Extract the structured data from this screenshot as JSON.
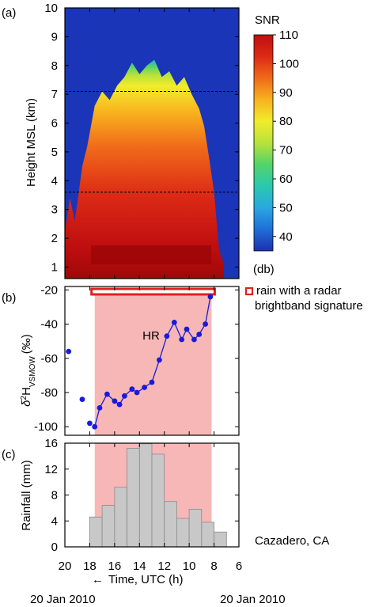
{
  "chart_data": [
    {
      "panel_label": "(a)",
      "type": "heatmap",
      "ylabel": "Height MSL (km)",
      "ylim": [
        0.6,
        10
      ],
      "yticks": [
        "1",
        "2",
        "3",
        "4",
        "5",
        "6",
        "7",
        "8",
        "9",
        "10"
      ],
      "colorbar": {
        "title": "SNR",
        "unit": "(db)",
        "range": [
          35,
          110
        ],
        "ticks": [
          "110",
          "100",
          "90",
          "80",
          "70",
          "60",
          "50",
          "40"
        ],
        "colors": [
          "#1f2fb0",
          "#1f6fd8",
          "#2aa7e0",
          "#29c9b0",
          "#54d36a",
          "#b8e23a",
          "#f2ec2c",
          "#f8b21e",
          "#f06a1a",
          "#dc2a16",
          "#c00e10"
        ]
      },
      "reference_lines_km": [
        7.1,
        3.6
      ],
      "approx_echo_top_km": [
        [
          20.0,
          2.2
        ],
        [
          19.6,
          3.4
        ],
        [
          19.2,
          2.6
        ],
        [
          18.6,
          4.5
        ],
        [
          18.2,
          5.2
        ],
        [
          17.6,
          6.6
        ],
        [
          17.0,
          7.1
        ],
        [
          16.4,
          6.8
        ],
        [
          15.8,
          7.3
        ],
        [
          15.2,
          7.6
        ],
        [
          14.6,
          8.1
        ],
        [
          14.0,
          7.7
        ],
        [
          13.4,
          8.0
        ],
        [
          12.8,
          8.2
        ],
        [
          12.2,
          7.6
        ],
        [
          11.6,
          7.8
        ],
        [
          11.0,
          7.3
        ],
        [
          10.4,
          7.6
        ],
        [
          9.8,
          7.0
        ],
        [
          9.2,
          6.5
        ],
        [
          8.8,
          5.9
        ],
        [
          8.4,
          4.8
        ],
        [
          8.0,
          3.6
        ],
        [
          7.6,
          1.6
        ],
        [
          7.2,
          1.1
        ]
      ]
    },
    {
      "panel_label": "(b)",
      "type": "scatter",
      "ylabel": "δ²H",
      "ylabel_subscript": "VSMOW",
      "ylabel_unit": "(‰)",
      "ylim": [
        -105,
        -18
      ],
      "yticks": [
        "-20",
        "-40",
        "-60",
        "-80",
        "-100"
      ],
      "annotation": "HR",
      "legend": "rain with a radar brightband signature",
      "shaded_interval_h": [
        17.6,
        8.2
      ],
      "isolated_points": [
        [
          19.7,
          -56
        ],
        [
          18.6,
          -84
        ],
        [
          18.0,
          -98
        ]
      ],
      "series": [
        {
          "values": [
            [
              17.6,
              -100
            ],
            [
              17.2,
              -89
            ],
            [
              16.6,
              -81
            ],
            [
              16.0,
              -85
            ],
            [
              15.6,
              -87
            ],
            [
              15.2,
              -82
            ],
            [
              14.6,
              -78
            ],
            [
              14.2,
              -80
            ],
            [
              13.6,
              -77
            ],
            [
              13.0,
              -74
            ],
            [
              12.4,
              -61
            ],
            [
              11.8,
              -47
            ],
            [
              11.2,
              -39
            ],
            [
              10.6,
              -49
            ],
            [
              10.2,
              -43
            ],
            [
              9.6,
              -49
            ],
            [
              9.2,
              -46
            ],
            [
              8.7,
              -40
            ],
            [
              8.3,
              -24
            ]
          ]
        }
      ]
    },
    {
      "panel_label": "(c)",
      "type": "bar",
      "ylabel": "Rainfall (mm)",
      "xlabel": "Time, UTC (h)",
      "xlabel_arrow": "←",
      "ylim": [
        0,
        16
      ],
      "yticks": [
        "0",
        "4",
        "8",
        "12",
        "16"
      ],
      "xlim": [
        20,
        6
      ],
      "xticks": [
        "20",
        "18",
        "16",
        "14",
        "12",
        "10",
        "8",
        "6"
      ],
      "annotation": "Cazadero, CA",
      "date_left": "20 Jan 2010",
      "date_right": "20 Jan 2010",
      "bar_width_h": 1.0,
      "bars": [
        {
          "start_h": 18.0,
          "value": 4.6
        },
        {
          "start_h": 17.0,
          "value": 6.4
        },
        {
          "start_h": 16.0,
          "value": 9.2
        },
        {
          "start_h": 15.0,
          "value": 15.2
        },
        {
          "start_h": 14.0,
          "value": 15.9
        },
        {
          "start_h": 13.0,
          "value": 14.3
        },
        {
          "start_h": 12.0,
          "value": 7.0
        },
        {
          "start_h": 11.0,
          "value": 4.4
        },
        {
          "start_h": 10.0,
          "value": 5.8
        },
        {
          "start_h": 9.0,
          "value": 3.8
        },
        {
          "start_h": 8.0,
          "value": 2.3
        }
      ]
    }
  ]
}
